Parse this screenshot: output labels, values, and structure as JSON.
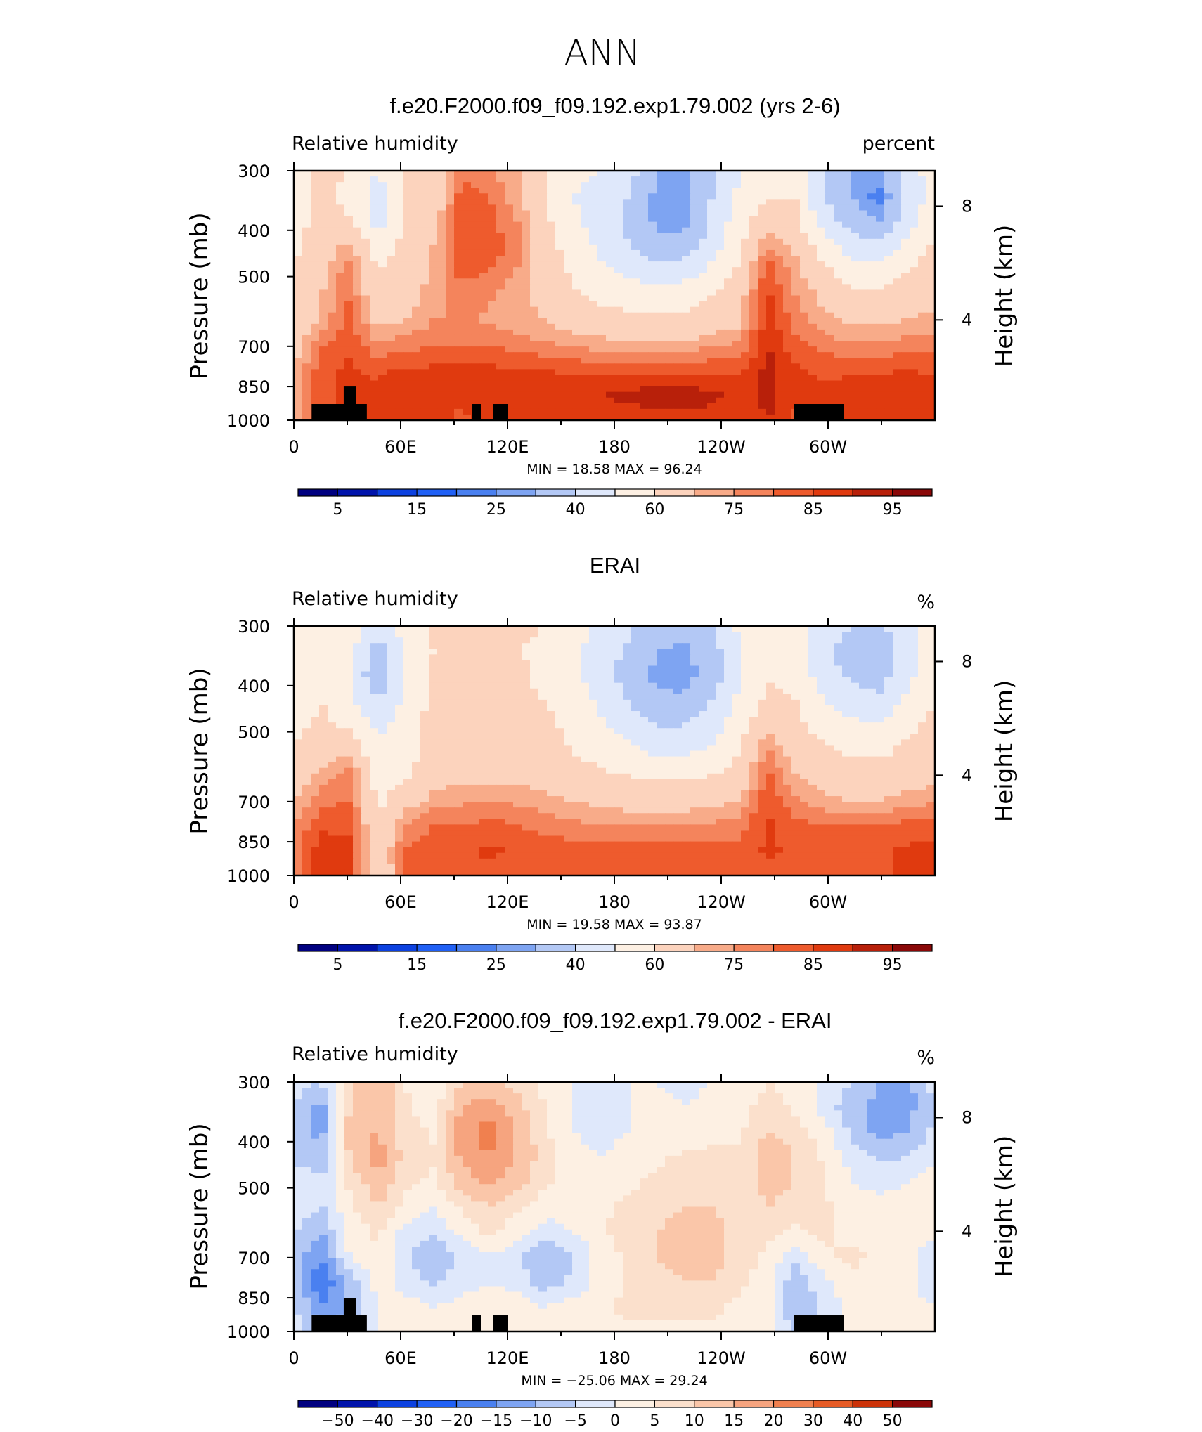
{
  "figure": {
    "title": "ANN",
    "y_label_left": "Pressure (mb)",
    "y_label_right": "Height (km)"
  },
  "colors": {
    "rh_levels": [
      "#000080",
      "#0013ab",
      "#0c41e0",
      "#2060f5",
      "#4a80f0",
      "#7ea4f2",
      "#b3c8f5",
      "#dfe8fb",
      "#fdf0e3",
      "#fcd3bd",
      "#f8ab89",
      "#f4845c",
      "#ee5b2d",
      "#e03a0f",
      "#b8200a",
      "#8a0808"
    ],
    "diff_levels": [
      "#000080",
      "#0013ab",
      "#0c41e0",
      "#2060f5",
      "#4a80f0",
      "#7ea4f2",
      "#b3c8f5",
      "#dfe8fb",
      "#fdf0e3",
      "#fbe0cc",
      "#fac6a9",
      "#f6a47f",
      "#f0804f",
      "#e65b25",
      "#cc3208",
      "#8a0808"
    ],
    "land": "#000000"
  },
  "chart_data": [
    {
      "type": "heatmap",
      "title": "f.e20.F2000.f09_f09.192.exp1.79.002 (yrs 2-6)",
      "left_string": "Relative humidity",
      "right_string": "percent",
      "x_ticks": [
        "0",
        "60E",
        "120E",
        "180",
        "120W",
        "60W"
      ],
      "x_tick_lons": [
        0,
        60,
        120,
        180,
        240,
        300
      ],
      "xlim": [
        0,
        360
      ],
      "y_ticks": [
        "300",
        "400",
        "500",
        "700",
        "850",
        "1000"
      ],
      "y_tick_values": [
        300,
        400,
        500,
        700,
        850,
        1000
      ],
      "ylim": [
        300,
        1000
      ],
      "height_ticks": [
        "8",
        "4"
      ],
      "height_tick_km": [
        8,
        4
      ],
      "min_max_text": "MIN =   18.58   MAX =   96.24",
      "min": 18.58,
      "max": 96.24,
      "colorbar_labels": [
        "5",
        "15",
        "25",
        "40",
        "60",
        "75",
        "85",
        "95"
      ],
      "field": [
        [
          55,
          62,
          60,
          50,
          62,
          60,
          80,
          75,
          72,
          60,
          55,
          50,
          45,
          30,
          28,
          40,
          50,
          52,
          60,
          42,
          30,
          30,
          45,
          55
        ],
        [
          55,
          62,
          58,
          45,
          62,
          62,
          82,
          80,
          72,
          60,
          50,
          45,
          40,
          28,
          25,
          40,
          52,
          58,
          60,
          40,
          30,
          22,
          42,
          55
        ],
        [
          55,
          65,
          60,
          45,
          62,
          65,
          85,
          82,
          75,
          62,
          52,
          45,
          38,
          28,
          26,
          42,
          55,
          66,
          62,
          45,
          35,
          30,
          45,
          58
        ],
        [
          58,
          66,
          72,
          55,
          62,
          70,
          85,
          83,
          78,
          65,
          55,
          48,
          40,
          33,
          35,
          45,
          58,
          75,
          68,
          55,
          45,
          42,
          52,
          62
        ],
        [
          60,
          68,
          78,
          60,
          65,
          72,
          82,
          80,
          75,
          66,
          58,
          52,
          48,
          43,
          45,
          52,
          62,
          83,
          72,
          62,
          55,
          53,
          60,
          65
        ],
        [
          60,
          70,
          80,
          62,
          66,
          72,
          78,
          76,
          72,
          68,
          62,
          58,
          56,
          55,
          56,
          60,
          66,
          86,
          75,
          68,
          62,
          62,
          66,
          68
        ],
        [
          62,
          72,
          82,
          68,
          70,
          75,
          76,
          74,
          72,
          70,
          66,
          64,
          62,
          62,
          62,
          65,
          68,
          88,
          78,
          72,
          68,
          68,
          70,
          72
        ],
        [
          66,
          80,
          84,
          76,
          78,
          80,
          80,
          80,
          78,
          76,
          74,
          73,
          72,
          72,
          72,
          74,
          76,
          90,
          82,
          78,
          76,
          76,
          78,
          78
        ],
        [
          70,
          84,
          86,
          84,
          86,
          86,
          86,
          86,
          86,
          85,
          84,
          84,
          84,
          84,
          84,
          84,
          84,
          92,
          86,
          84,
          84,
          84,
          85,
          84
        ],
        [
          72,
          84,
          86,
          86,
          90,
          88,
          86,
          88,
          88,
          88,
          90,
          90,
          91,
          93,
          93,
          91,
          88,
          92,
          86,
          86,
          88,
          90,
          90,
          88
        ],
        [
          72,
          84,
          86,
          86,
          88,
          86,
          84,
          86,
          86,
          86,
          88,
          88,
          88,
          88,
          88,
          88,
          86,
          90,
          84,
          84,
          86,
          88,
          88,
          86
        ]
      ],
      "land_mask": [
        {
          "lon0": 10,
          "lon1": 41,
          "p_top": 925
        },
        {
          "lon0": 28,
          "lon1": 35,
          "p_top": 850
        },
        {
          "lon0": 100,
          "lon1": 105,
          "p_top": 925
        },
        {
          "lon0": 112,
          "lon1": 120,
          "p_top": 925
        },
        {
          "lon0": 281,
          "lon1": 309,
          "p_top": 925
        }
      ]
    },
    {
      "type": "heatmap",
      "title": "ERAI",
      "left_string": "Relative humidity",
      "right_string": "%",
      "x_ticks": [
        "0",
        "60E",
        "120E",
        "180",
        "120W",
        "60W"
      ],
      "x_tick_lons": [
        0,
        60,
        120,
        180,
        240,
        300
      ],
      "xlim": [
        0,
        360
      ],
      "y_ticks": [
        "300",
        "400",
        "500",
        "700",
        "850",
        "1000"
      ],
      "y_tick_values": [
        300,
        400,
        500,
        700,
        850,
        1000
      ],
      "ylim": [
        300,
        1000
      ],
      "height_ticks": [
        "8",
        "4"
      ],
      "height_tick_km": [
        8,
        4
      ],
      "min_max_text": "MIN =   19.58   MAX =   93.87",
      "min": 19.58,
      "max": 93.87,
      "colorbar_labels": [
        "5",
        "15",
        "25",
        "40",
        "60",
        "75",
        "85",
        "95"
      ],
      "field": [
        [
          50,
          58,
          58,
          42,
          55,
          62,
          65,
          65,
          62,
          60,
          55,
          48,
          42,
          35,
          33,
          40,
          52,
          58,
          55,
          45,
          40,
          38,
          48,
          55
        ],
        [
          50,
          58,
          52,
          35,
          52,
          60,
          64,
          62,
          60,
          58,
          52,
          45,
          38,
          30,
          28,
          36,
          50,
          58,
          54,
          42,
          35,
          32,
          45,
          55
        ],
        [
          52,
          60,
          50,
          32,
          50,
          62,
          64,
          62,
          62,
          58,
          52,
          45,
          36,
          28,
          26,
          35,
          50,
          60,
          56,
          45,
          38,
          35,
          48,
          56
        ],
        [
          55,
          60,
          52,
          40,
          52,
          62,
          64,
          62,
          62,
          60,
          55,
          48,
          40,
          32,
          32,
          40,
          52,
          62,
          60,
          50,
          45,
          42,
          52,
          60
        ],
        [
          58,
          62,
          58,
          48,
          55,
          64,
          65,
          64,
          64,
          62,
          58,
          52,
          46,
          40,
          40,
          46,
          56,
          68,
          62,
          56,
          52,
          52,
          58,
          62
        ],
        [
          60,
          66,
          68,
          52,
          56,
          64,
          66,
          65,
          65,
          64,
          60,
          56,
          52,
          48,
          48,
          52,
          60,
          76,
          66,
          62,
          58,
          58,
          62,
          64
        ],
        [
          64,
          72,
          78,
          56,
          58,
          66,
          68,
          68,
          68,
          66,
          64,
          62,
          60,
          58,
          58,
          60,
          64,
          82,
          70,
          66,
          64,
          64,
          66,
          68
        ],
        [
          70,
          78,
          80,
          58,
          66,
          72,
          74,
          75,
          74,
          72,
          70,
          68,
          66,
          66,
          66,
          68,
          70,
          84,
          76,
          72,
          70,
          70,
          72,
          74
        ],
        [
          76,
          84,
          84,
          60,
          76,
          80,
          80,
          82,
          80,
          78,
          76,
          76,
          75,
          75,
          75,
          76,
          78,
          86,
          82,
          80,
          80,
          80,
          82,
          82
        ],
        [
          78,
          88,
          86,
          62,
          80,
          84,
          84,
          86,
          84,
          84,
          82,
          82,
          82,
          82,
          82,
          82,
          82,
          86,
          84,
          84,
          84,
          84,
          86,
          86
        ],
        [
          78,
          88,
          86,
          60,
          80,
          82,
          82,
          84,
          82,
          82,
          80,
          80,
          80,
          80,
          80,
          80,
          80,
          84,
          82,
          82,
          82,
          84,
          86,
          86
        ]
      ],
      "land_mask": []
    },
    {
      "type": "heatmap",
      "title": "f.e20.F2000.f09_f09.192.exp1.79.002 - ERAI",
      "left_string": "Relative humidity",
      "right_string": "%",
      "x_ticks": [
        "0",
        "60E",
        "120E",
        "180",
        "120W",
        "60W"
      ],
      "x_tick_lons": [
        0,
        60,
        120,
        180,
        240,
        300
      ],
      "xlim": [
        0,
        360
      ],
      "y_ticks": [
        "300",
        "400",
        "500",
        "700",
        "850",
        "1000"
      ],
      "y_tick_values": [
        300,
        400,
        500,
        700,
        850,
        1000
      ],
      "ylim": [
        300,
        1000
      ],
      "height_ticks": [
        "8",
        "4"
      ],
      "height_tick_km": [
        8,
        4
      ],
      "min_max_text": "MIN =  −25.06   MAX =   29.24",
      "min": -25.06,
      "max": 29.24,
      "colorbar_labels": [
        "−50",
        "−40",
        "−30",
        "−20",
        "−15",
        "−10",
        "−5",
        "0",
        "5",
        "10",
        "15",
        "20",
        "30",
        "40",
        "50"
      ],
      "field": [
        [
          -3,
          -5,
          8,
          15,
          5,
          0,
          10,
          12,
          8,
          4,
          0,
          0,
          0,
          0,
          -2,
          0,
          0,
          5,
          2,
          0,
          -5,
          -10,
          -12,
          -3
        ],
        [
          -5,
          -12,
          10,
          15,
          6,
          2,
          15,
          18,
          12,
          5,
          0,
          -2,
          0,
          2,
          0,
          2,
          2,
          8,
          4,
          -2,
          -8,
          -12,
          -12,
          -5
        ],
        [
          -8,
          -12,
          12,
          15,
          8,
          4,
          18,
          22,
          15,
          6,
          0,
          -2,
          0,
          2,
          2,
          4,
          4,
          10,
          8,
          2,
          -6,
          -12,
          -10,
          -4
        ],
        [
          -6,
          -8,
          10,
          18,
          8,
          6,
          16,
          20,
          15,
          8,
          2,
          0,
          2,
          4,
          6,
          6,
          6,
          14,
          10,
          4,
          -2,
          -6,
          -5,
          0
        ],
        [
          -2,
          -4,
          6,
          14,
          6,
          4,
          12,
          16,
          12,
          6,
          2,
          2,
          4,
          6,
          8,
          8,
          6,
          12,
          10,
          6,
          0,
          -2,
          0,
          2
        ],
        [
          -2,
          -5,
          4,
          10,
          4,
          0,
          6,
          10,
          6,
          2,
          2,
          4,
          6,
          8,
          10,
          10,
          8,
          10,
          8,
          6,
          2,
          2,
          2,
          4
        ],
        [
          -4,
          -10,
          2,
          6,
          -2,
          -4,
          2,
          6,
          2,
          -2,
          0,
          4,
          8,
          10,
          12,
          12,
          8,
          6,
          4,
          6,
          4,
          2,
          2,
          2
        ],
        [
          -8,
          -15,
          0,
          4,
          -4,
          -10,
          -4,
          0,
          -4,
          -10,
          -6,
          2,
          6,
          10,
          12,
          12,
          8,
          4,
          -4,
          4,
          6,
          4,
          2,
          -4
        ],
        [
          -6,
          -20,
          -8,
          2,
          -2,
          -6,
          -2,
          0,
          -2,
          -8,
          -4,
          2,
          6,
          8,
          10,
          10,
          6,
          2,
          -8,
          -2,
          4,
          4,
          2,
          -6
        ],
        [
          -4,
          -15,
          -10,
          0,
          2,
          0,
          2,
          2,
          2,
          0,
          2,
          4,
          6,
          6,
          6,
          6,
          4,
          2,
          -10,
          -4,
          2,
          4,
          4,
          0
        ],
        [
          -2,
          -8,
          -6,
          0,
          4,
          2,
          2,
          2,
          4,
          4,
          4,
          4,
          4,
          4,
          4,
          4,
          4,
          2,
          -6,
          -2,
          2,
          4,
          2,
          0
        ]
      ],
      "land_mask": [
        {
          "lon0": 10,
          "lon1": 41,
          "p_top": 925
        },
        {
          "lon0": 28,
          "lon1": 35,
          "p_top": 850
        },
        {
          "lon0": 100,
          "lon1": 105,
          "p_top": 925
        },
        {
          "lon0": 112,
          "lon1": 120,
          "p_top": 925
        },
        {
          "lon0": 281,
          "lon1": 309,
          "p_top": 925
        }
      ]
    }
  ]
}
